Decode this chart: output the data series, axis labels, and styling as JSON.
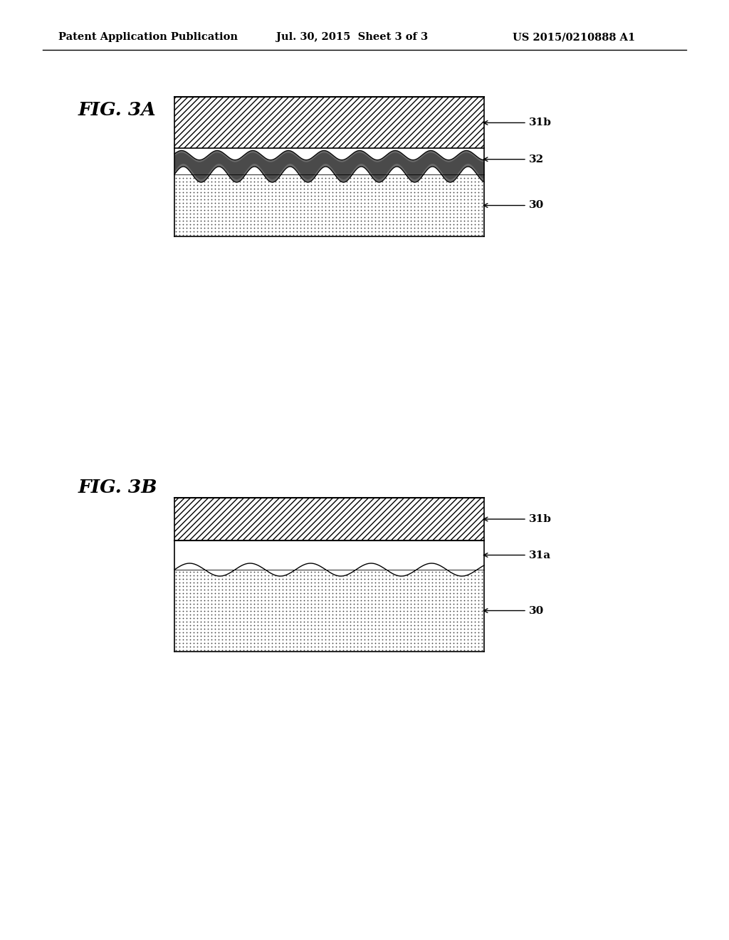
{
  "header_left": "Patent Application Publication",
  "header_mid": "Jul. 30, 2015  Sheet 3 of 3",
  "header_right": "US 2015/0210888 A1",
  "fig3a_label": "FIG. 3A",
  "fig3b_label": "FIG. 3B",
  "label_31b": "31b",
  "label_32": "32",
  "label_30": "30",
  "label_31b_b": "31b",
  "label_31a": "31a",
  "label_30_b": "30",
  "bg_color": "#ffffff"
}
